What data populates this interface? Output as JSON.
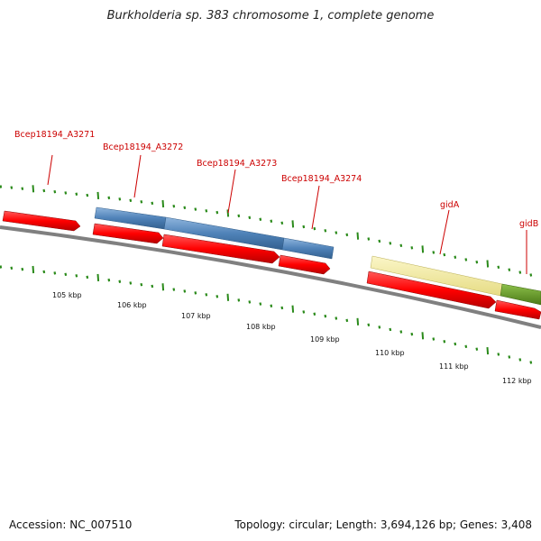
{
  "title": "Burkholderia sp. 383 chromosome 1, complete genome",
  "footer": {
    "accession": "Accession: NC_007510",
    "summary": "Topology: circular; Length: 3,694,126 bp; Genes: 3,408"
  },
  "scale_labels": [
    "105 kbp",
    "106 kbp",
    "107 kbp",
    "108 kbp",
    "109 kbp",
    "110 kbp",
    "111 kbp",
    "112 kbp"
  ],
  "gene_labels": [
    "Bcep18194_A3271",
    "Bcep18194_A3272",
    "Bcep18194_A3273",
    "Bcep18194_A3274",
    "gidA",
    "gidB"
  ],
  "colors": {
    "cds": "#ff0000",
    "feature_blue": "#4f82b8",
    "feature_yellow": "#f4eca0",
    "feature_green": "#6a9a2a",
    "ticks": "#2a8a1a",
    "backbone": "#808080",
    "label": "#cc0000"
  }
}
